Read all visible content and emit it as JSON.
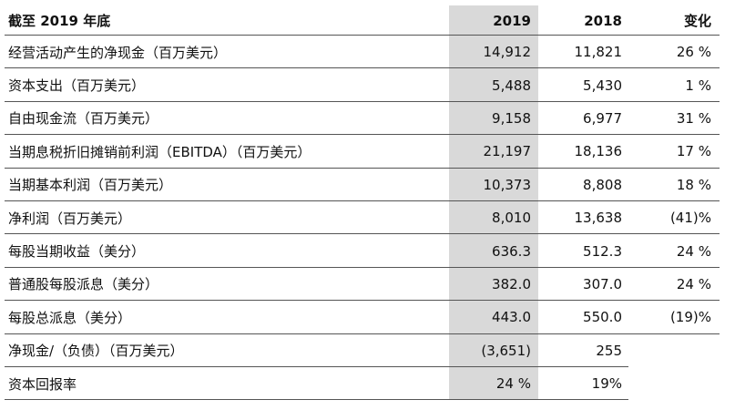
{
  "header": {
    "label": "截至 2019 年底",
    "col_2019": "2019",
    "col_2018": "2018",
    "col_change": "变化"
  },
  "rows": [
    {
      "label": "经营活动产生的净现金（百万美元）",
      "v2019": "14,912",
      "v2018": "11,821",
      "change": "26 %"
    },
    {
      "label": "资本支出（百万美元）",
      "v2019": "5,488",
      "v2018": "5,430",
      "change": "1 %"
    },
    {
      "label": "自由现金流（百万美元）",
      "v2019": "9,158",
      "v2018": "6,977",
      "change": "31 %"
    },
    {
      "label": "当期息税折旧摊销前利润（EBITDA）（百万美元）",
      "v2019": "21,197",
      "v2018": "18,136",
      "change": "17 %"
    },
    {
      "label": "当期基本利润（百万美元）",
      "v2019": "10,373",
      "v2018": "8,808",
      "change": "18 %"
    },
    {
      "label": "净利润（百万美元）",
      "v2019": "8,010",
      "v2018": "13,638",
      "change": "(41)%"
    },
    {
      "label": "每股当期收益（美分）",
      "v2019": "636.3",
      "v2018": "512.3",
      "change": "24 %"
    },
    {
      "label": "普通股每股派息（美分）",
      "v2019": "382.0",
      "v2018": "307.0",
      "change": "24 %"
    },
    {
      "label": "每股总派息（美分）",
      "v2019": "443.0",
      "v2018": "550.0",
      "change": "(19)%"
    },
    {
      "label": "净现金/（负债）（百万美元）",
      "v2019": "(3,651)",
      "v2018": "255",
      "change": ""
    },
    {
      "label": "资本回报率",
      "v2019": "24 %",
      "v2018": "19%",
      "change": ""
    }
  ]
}
